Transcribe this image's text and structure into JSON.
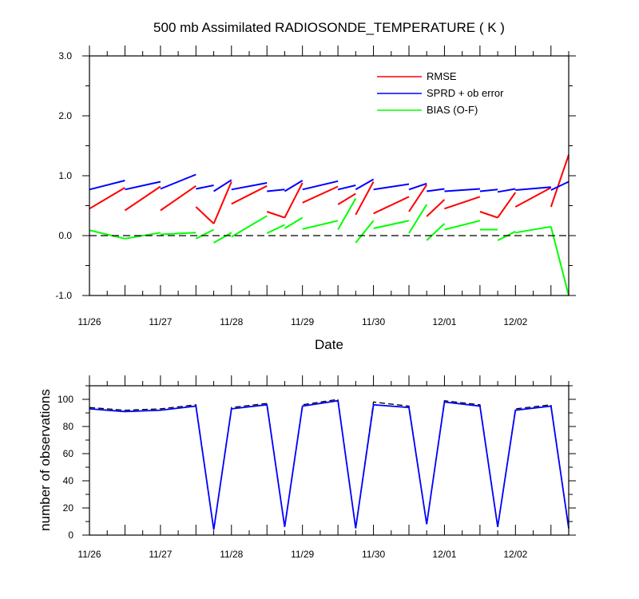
{
  "colors": {
    "rmse": "#ff0000",
    "spread": "#0000ff",
    "bias": "#00ff00",
    "zero_line": "#000000",
    "obs_used": "#0000ff",
    "obs_possible": "#000000"
  },
  "chart_data": [
    {
      "type": "line",
      "title": "500 mb Assimilated RADIOSONDE_TEMPERATURE ( K )",
      "xlabel": "Date",
      "ylabel": "",
      "x_ticks": [
        "11/26",
        "11/27",
        "11/28",
        "11/29",
        "11/30",
        "12/01",
        "12/02"
      ],
      "x_range_days": [
        0,
        6.75
      ],
      "ylim": [
        -1.0,
        3.0
      ],
      "y_ticks": [
        "3.0",
        "2.0",
        "1.0",
        "0.0",
        "-1.0"
      ],
      "grid": false,
      "legend_position": "top-right",
      "reference_line": {
        "y": 0,
        "style": "dashed"
      },
      "x_days": [
        0,
        0.5,
        1,
        1.5,
        1.75,
        2,
        2.5,
        2.75,
        3,
        3.5,
        3.75,
        4,
        4.5,
        4.75,
        5,
        5.5,
        5.75,
        6,
        6.5,
        6.75
      ],
      "series": [
        {
          "name": "RMSE",
          "segments": [
            [
              [
                0,
                0.45
              ],
              [
                0.5,
                0.8
              ]
            ],
            [
              [
                0.5,
                0.42
              ],
              [
                1,
                0.82
              ]
            ],
            [
              [
                1,
                0.42
              ],
              [
                1.5,
                0.83
              ]
            ],
            [
              [
                1.5,
                0.48
              ],
              [
                1.75,
                0.2
              ]
            ],
            [
              [
                1.75,
                0.2
              ],
              [
                2,
                0.9
              ]
            ],
            [
              [
                2,
                0.53
              ],
              [
                2.5,
                0.83
              ]
            ],
            [
              [
                2.5,
                0.4
              ],
              [
                2.75,
                0.3
              ]
            ],
            [
              [
                2.75,
                0.3
              ],
              [
                3,
                0.88
              ]
            ],
            [
              [
                3,
                0.55
              ],
              [
                3.5,
                0.82
              ]
            ],
            [
              [
                3.5,
                0.52
              ],
              [
                3.75,
                0.7
              ]
            ],
            [
              [
                3.75,
                0.35
              ],
              [
                4,
                0.9
              ]
            ],
            [
              [
                4,
                0.37
              ],
              [
                4.5,
                0.65
              ]
            ],
            [
              [
                4.5,
                0.4
              ],
              [
                4.75,
                0.85
              ]
            ],
            [
              [
                4.75,
                0.32
              ],
              [
                5,
                0.6
              ]
            ],
            [
              [
                5,
                0.45
              ],
              [
                5.5,
                0.65
              ]
            ],
            [
              [
                5.5,
                0.4
              ],
              [
                5.75,
                0.3
              ]
            ],
            [
              [
                5.75,
                0.3
              ],
              [
                6,
                0.72
              ]
            ],
            [
              [
                6,
                0.48
              ],
              [
                6.5,
                0.8
              ]
            ],
            [
              [
                6.5,
                0.48
              ],
              [
                6.75,
                1.35
              ]
            ]
          ]
        },
        {
          "name": "SPRD + ob error",
          "segments": [
            [
              [
                0,
                0.77
              ],
              [
                0.5,
                0.92
              ]
            ],
            [
              [
                0.5,
                0.77
              ],
              [
                1,
                0.9
              ]
            ],
            [
              [
                1,
                0.78
              ],
              [
                1.5,
                1.02
              ]
            ],
            [
              [
                1.5,
                0.78
              ],
              [
                1.75,
                0.84
              ]
            ],
            [
              [
                1.75,
                0.74
              ],
              [
                2,
                0.93
              ]
            ],
            [
              [
                2,
                0.77
              ],
              [
                2.5,
                0.88
              ]
            ],
            [
              [
                2.5,
                0.74
              ],
              [
                2.75,
                0.77
              ]
            ],
            [
              [
                2.75,
                0.74
              ],
              [
                3,
                0.92
              ]
            ],
            [
              [
                3,
                0.77
              ],
              [
                3.5,
                0.91
              ]
            ],
            [
              [
                3.5,
                0.77
              ],
              [
                3.75,
                0.84
              ]
            ],
            [
              [
                3.75,
                0.77
              ],
              [
                4,
                0.94
              ]
            ],
            [
              [
                4,
                0.77
              ],
              [
                4.5,
                0.86
              ]
            ],
            [
              [
                4.5,
                0.77
              ],
              [
                4.75,
                0.87
              ]
            ],
            [
              [
                4.75,
                0.74
              ],
              [
                5,
                0.78
              ]
            ],
            [
              [
                5,
                0.74
              ],
              [
                5.5,
                0.78
              ]
            ],
            [
              [
                5.5,
                0.74
              ],
              [
                5.75,
                0.77
              ]
            ],
            [
              [
                5.75,
                0.73
              ],
              [
                6,
                0.78
              ]
            ],
            [
              [
                6,
                0.76
              ],
              [
                6.5,
                0.81
              ]
            ],
            [
              [
                6.5,
                0.76
              ],
              [
                6.75,
                0.9
              ]
            ]
          ]
        },
        {
          "name": "BIAS (O-F)",
          "segments": [
            [
              [
                0,
                0.09
              ],
              [
                0.5,
                -0.05
              ]
            ],
            [
              [
                0.5,
                -0.05
              ],
              [
                1,
                0.05
              ]
            ],
            [
              [
                1,
                0.02
              ],
              [
                1.5,
                0.05
              ]
            ],
            [
              [
                1.5,
                -0.05
              ],
              [
                1.75,
                0.1
              ]
            ],
            [
              [
                1.75,
                -0.12
              ],
              [
                2,
                0.05
              ]
            ],
            [
              [
                2,
                -0.02
              ],
              [
                2.5,
                0.33
              ]
            ],
            [
              [
                2.5,
                0.04
              ],
              [
                2.75,
                0.18
              ]
            ],
            [
              [
                2.75,
                0.12
              ],
              [
                3,
                0.3
              ]
            ],
            [
              [
                3,
                0.11
              ],
              [
                3.5,
                0.25
              ]
            ],
            [
              [
                3.5,
                0.1
              ],
              [
                3.75,
                0.62
              ]
            ],
            [
              [
                3.75,
                -0.12
              ],
              [
                4,
                0.25
              ]
            ],
            [
              [
                4,
                0.12
              ],
              [
                4.5,
                0.25
              ]
            ],
            [
              [
                4.5,
                0.04
              ],
              [
                4.75,
                0.52
              ]
            ],
            [
              [
                4.75,
                -0.08
              ],
              [
                5,
                0.2
              ]
            ],
            [
              [
                5,
                0.1
              ],
              [
                5.5,
                0.25
              ]
            ],
            [
              [
                5.5,
                0.1
              ],
              [
                5.75,
                0.1
              ]
            ],
            [
              [
                5.75,
                -0.08
              ],
              [
                6,
                0.07
              ]
            ],
            [
              [
                6,
                0.05
              ],
              [
                6.5,
                0.15
              ]
            ],
            [
              [
                6.5,
                0.15
              ],
              [
                6.75,
                -1.0
              ]
            ]
          ]
        }
      ]
    },
    {
      "type": "line",
      "title": "",
      "xlabel": "",
      "ylabel": "number of observations",
      "x_ticks": [
        "11/26",
        "11/27",
        "11/28",
        "11/29",
        "11/30",
        "12/01",
        "12/02"
      ],
      "x_range_days": [
        0,
        6.75
      ],
      "ylim": [
        0,
        110
      ],
      "y_ticks": [
        "0",
        "20",
        "40",
        "60",
        "80",
        "100"
      ],
      "grid": false,
      "x_days": [
        0,
        0.5,
        1,
        1.5,
        1.75,
        2,
        2.5,
        2.75,
        3,
        3.5,
        3.75,
        4,
        4.5,
        4.75,
        5,
        5.5,
        5.75,
        6,
        6.5,
        6.75
      ],
      "series": [
        {
          "style": "dashed",
          "values": [
            94,
            92,
            93,
            96,
            4,
            94,
            97,
            6,
            96,
            100,
            5,
            98,
            95,
            8,
            99,
            96,
            6,
            93,
            96,
            5
          ]
        },
        {
          "style": "solid",
          "values": [
            93,
            91,
            92,
            95,
            4,
            93,
            96,
            6,
            95,
            99,
            5,
            96,
            94,
            8,
            98,
            95,
            6,
            92,
            95,
            5
          ]
        }
      ]
    }
  ]
}
